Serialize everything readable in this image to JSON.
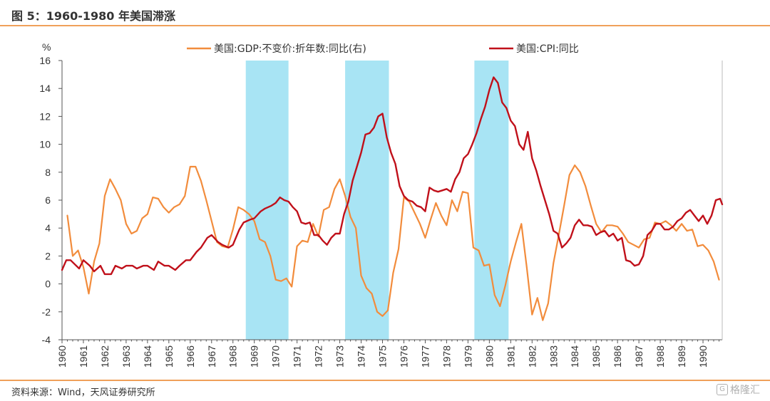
{
  "figure": {
    "title": "图 5：1960-1980 年美国滞涨",
    "source": "资料来源：Wind，天风证券研究所",
    "watermark": "格隆汇"
  },
  "colors": {
    "gdp": "#f28c3c",
    "cpi": "#c0101a",
    "shade": "#a8e4f4",
    "axis": "#555555",
    "rule": "#f0a05a"
  },
  "chart_data": {
    "type": "line",
    "ylabel": "%",
    "ylim": [
      -4,
      16
    ],
    "yticks": [
      -4,
      -2,
      0,
      2,
      4,
      6,
      8,
      10,
      12,
      14,
      16
    ],
    "xlim": [
      1960,
      1990.9
    ],
    "xticks": [
      "1960",
      "1961",
      "1962",
      "1963",
      "1964",
      "1965",
      "1966",
      "1967",
      "1968",
      "1969",
      "1970",
      "1971",
      "1972",
      "1973",
      "1974",
      "1975",
      "1976",
      "1977",
      "1978",
      "1979",
      "1980",
      "1981",
      "1982",
      "1983",
      "1984",
      "1985",
      "1986",
      "1987",
      "1988",
      "1989",
      "1990"
    ],
    "grid": false,
    "legend_position": "top",
    "shaded_periods": [
      [
        1968.6,
        1970.6
      ],
      [
        1973.25,
        1975.3
      ],
      [
        1979.3,
        1980.9
      ]
    ],
    "series": [
      {
        "name": "美国:GDP:不变价:折年数:同比(右)",
        "color_key": "gdp",
        "points": [
          [
            1960.25,
            4.9
          ],
          [
            1960.5,
            2.0
          ],
          [
            1960.75,
            2.4
          ],
          [
            1961.0,
            1.2
          ],
          [
            1961.25,
            -0.7
          ],
          [
            1961.5,
            1.6
          ],
          [
            1961.75,
            2.9
          ],
          [
            1962.0,
            6.3
          ],
          [
            1962.25,
            7.5
          ],
          [
            1962.5,
            6.8
          ],
          [
            1962.75,
            6.0
          ],
          [
            1963.0,
            4.3
          ],
          [
            1963.25,
            3.6
          ],
          [
            1963.5,
            3.8
          ],
          [
            1963.75,
            4.7
          ],
          [
            1964.0,
            5.0
          ],
          [
            1964.25,
            6.2
          ],
          [
            1964.5,
            6.1
          ],
          [
            1964.75,
            5.5
          ],
          [
            1965.0,
            5.1
          ],
          [
            1965.25,
            5.5
          ],
          [
            1965.5,
            5.7
          ],
          [
            1965.75,
            6.3
          ],
          [
            1966.0,
            8.4
          ],
          [
            1966.25,
            8.4
          ],
          [
            1966.5,
            7.4
          ],
          [
            1966.75,
            6.0
          ],
          [
            1967.0,
            4.5
          ],
          [
            1967.25,
            3.0
          ],
          [
            1967.5,
            2.7
          ],
          [
            1967.75,
            2.6
          ],
          [
            1968.0,
            3.9
          ],
          [
            1968.25,
            5.5
          ],
          [
            1968.5,
            5.3
          ],
          [
            1968.75,
            5.0
          ],
          [
            1969.0,
            4.5
          ],
          [
            1969.25,
            3.2
          ],
          [
            1969.5,
            3.0
          ],
          [
            1969.75,
            2.0
          ],
          [
            1970.0,
            0.3
          ],
          [
            1970.25,
            0.2
          ],
          [
            1970.5,
            0.4
          ],
          [
            1970.75,
            -0.2
          ],
          [
            1971.0,
            2.7
          ],
          [
            1971.25,
            3.1
          ],
          [
            1971.5,
            3.0
          ],
          [
            1971.75,
            4.3
          ],
          [
            1972.0,
            3.4
          ],
          [
            1972.25,
            5.3
          ],
          [
            1972.5,
            5.5
          ],
          [
            1972.75,
            6.8
          ],
          [
            1973.0,
            7.5
          ],
          [
            1973.25,
            6.3
          ],
          [
            1973.5,
            4.8
          ],
          [
            1973.75,
            4.0
          ],
          [
            1974.0,
            0.6
          ],
          [
            1974.25,
            -0.3
          ],
          [
            1974.5,
            -0.7
          ],
          [
            1974.75,
            -2.0
          ],
          [
            1975.0,
            -2.3
          ],
          [
            1975.25,
            -1.9
          ],
          [
            1975.5,
            0.8
          ],
          [
            1975.75,
            2.5
          ],
          [
            1976.0,
            6.2
          ],
          [
            1976.25,
            5.9
          ],
          [
            1976.5,
            5.1
          ],
          [
            1976.75,
            4.3
          ],
          [
            1977.0,
            3.3
          ],
          [
            1977.25,
            4.6
          ],
          [
            1977.5,
            5.8
          ],
          [
            1977.75,
            4.9
          ],
          [
            1978.0,
            4.2
          ],
          [
            1978.25,
            6.0
          ],
          [
            1978.5,
            5.2
          ],
          [
            1978.75,
            6.6
          ],
          [
            1979.0,
            6.5
          ],
          [
            1979.25,
            2.6
          ],
          [
            1979.5,
            2.4
          ],
          [
            1979.75,
            1.3
          ],
          [
            1980.0,
            1.4
          ],
          [
            1980.25,
            -0.8
          ],
          [
            1980.5,
            -1.6
          ],
          [
            1980.75,
            -0.1
          ],
          [
            1981.0,
            1.6
          ],
          [
            1981.25,
            3.0
          ],
          [
            1981.5,
            4.3
          ],
          [
            1981.75,
            1.2
          ],
          [
            1982.0,
            -2.2
          ],
          [
            1982.25,
            -1.0
          ],
          [
            1982.5,
            -2.6
          ],
          [
            1982.75,
            -1.4
          ],
          [
            1983.0,
            1.5
          ],
          [
            1983.25,
            3.5
          ],
          [
            1983.5,
            5.6
          ],
          [
            1983.75,
            7.8
          ],
          [
            1984.0,
            8.5
          ],
          [
            1984.25,
            8.0
          ],
          [
            1984.5,
            7.0
          ],
          [
            1984.75,
            5.6
          ],
          [
            1985.0,
            4.3
          ],
          [
            1985.25,
            3.7
          ],
          [
            1985.5,
            4.2
          ],
          [
            1985.75,
            4.2
          ],
          [
            1986.0,
            4.1
          ],
          [
            1986.25,
            3.6
          ],
          [
            1986.5,
            3.0
          ],
          [
            1986.75,
            2.8
          ],
          [
            1987.0,
            2.6
          ],
          [
            1987.25,
            3.2
          ],
          [
            1987.5,
            3.3
          ],
          [
            1987.75,
            4.4
          ],
          [
            1988.0,
            4.3
          ],
          [
            1988.25,
            4.5
          ],
          [
            1988.5,
            4.2
          ],
          [
            1988.75,
            3.8
          ],
          [
            1989.0,
            4.3
          ],
          [
            1989.25,
            3.8
          ],
          [
            1989.5,
            3.9
          ],
          [
            1989.75,
            2.7
          ],
          [
            1990.0,
            2.8
          ],
          [
            1990.25,
            2.4
          ],
          [
            1990.5,
            1.6
          ],
          [
            1990.75,
            0.3
          ]
        ]
      },
      {
        "name": "美国:CPI:同比",
        "color_key": "cpi",
        "points": [
          [
            1960.0,
            1.0
          ],
          [
            1960.2,
            1.7
          ],
          [
            1960.4,
            1.7
          ],
          [
            1960.6,
            1.4
          ],
          [
            1960.8,
            1.1
          ],
          [
            1961.0,
            1.7
          ],
          [
            1961.3,
            1.3
          ],
          [
            1961.5,
            0.9
          ],
          [
            1961.8,
            1.3
          ],
          [
            1962.0,
            0.7
          ],
          [
            1962.3,
            0.7
          ],
          [
            1962.5,
            1.3
          ],
          [
            1962.8,
            1.1
          ],
          [
            1963.0,
            1.3
          ],
          [
            1963.3,
            1.3
          ],
          [
            1963.5,
            1.1
          ],
          [
            1963.8,
            1.3
          ],
          [
            1964.0,
            1.3
          ],
          [
            1964.3,
            1.0
          ],
          [
            1964.5,
            1.6
          ],
          [
            1964.8,
            1.3
          ],
          [
            1965.0,
            1.3
          ],
          [
            1965.3,
            1.0
          ],
          [
            1965.5,
            1.3
          ],
          [
            1965.8,
            1.7
          ],
          [
            1966.0,
            1.7
          ],
          [
            1966.3,
            2.3
          ],
          [
            1966.5,
            2.6
          ],
          [
            1966.8,
            3.3
          ],
          [
            1967.0,
            3.5
          ],
          [
            1967.3,
            3.0
          ],
          [
            1967.5,
            2.8
          ],
          [
            1967.8,
            2.6
          ],
          [
            1968.0,
            2.8
          ],
          [
            1968.3,
            3.9
          ],
          [
            1968.5,
            4.4
          ],
          [
            1968.8,
            4.6
          ],
          [
            1969.0,
            4.7
          ],
          [
            1969.3,
            5.2
          ],
          [
            1969.5,
            5.4
          ],
          [
            1969.8,
            5.6
          ],
          [
            1970.0,
            5.8
          ],
          [
            1970.2,
            6.2
          ],
          [
            1970.4,
            6.0
          ],
          [
            1970.6,
            5.9
          ],
          [
            1970.8,
            5.5
          ],
          [
            1971.0,
            5.2
          ],
          [
            1971.2,
            4.4
          ],
          [
            1971.4,
            4.3
          ],
          [
            1971.6,
            4.4
          ],
          [
            1971.8,
            3.5
          ],
          [
            1972.0,
            3.5
          ],
          [
            1972.2,
            3.1
          ],
          [
            1972.4,
            2.8
          ],
          [
            1972.6,
            3.3
          ],
          [
            1972.8,
            3.6
          ],
          [
            1973.0,
            3.6
          ],
          [
            1973.2,
            5.0
          ],
          [
            1973.4,
            5.9
          ],
          [
            1973.6,
            7.4
          ],
          [
            1973.8,
            8.4
          ],
          [
            1974.0,
            9.4
          ],
          [
            1974.2,
            10.7
          ],
          [
            1974.4,
            10.8
          ],
          [
            1974.6,
            11.2
          ],
          [
            1974.8,
            12.0
          ],
          [
            1975.0,
            12.2
          ],
          [
            1975.2,
            10.5
          ],
          [
            1975.4,
            9.4
          ],
          [
            1975.6,
            8.6
          ],
          [
            1975.8,
            7.0
          ],
          [
            1976.0,
            6.3
          ],
          [
            1976.2,
            6.0
          ],
          [
            1976.4,
            5.9
          ],
          [
            1976.6,
            5.6
          ],
          [
            1976.8,
            5.5
          ],
          [
            1977.0,
            5.2
          ],
          [
            1977.2,
            6.9
          ],
          [
            1977.4,
            6.7
          ],
          [
            1977.6,
            6.6
          ],
          [
            1977.8,
            6.7
          ],
          [
            1978.0,
            6.8
          ],
          [
            1978.2,
            6.6
          ],
          [
            1978.4,
            7.5
          ],
          [
            1978.6,
            8.0
          ],
          [
            1978.8,
            9.0
          ],
          [
            1979.0,
            9.3
          ],
          [
            1979.2,
            10.0
          ],
          [
            1979.4,
            10.8
          ],
          [
            1979.6,
            11.8
          ],
          [
            1979.8,
            12.7
          ],
          [
            1980.0,
            13.9
          ],
          [
            1980.2,
            14.8
          ],
          [
            1980.4,
            14.4
          ],
          [
            1980.6,
            13.0
          ],
          [
            1980.8,
            12.6
          ],
          [
            1981.0,
            11.7
          ],
          [
            1981.2,
            11.3
          ],
          [
            1981.4,
            10.0
          ],
          [
            1981.6,
            9.6
          ],
          [
            1981.8,
            10.9
          ],
          [
            1982.0,
            9.0
          ],
          [
            1982.2,
            8.1
          ],
          [
            1982.4,
            7.0
          ],
          [
            1982.6,
            6.0
          ],
          [
            1982.8,
            5.0
          ],
          [
            1983.0,
            3.8
          ],
          [
            1983.2,
            3.6
          ],
          [
            1983.4,
            2.6
          ],
          [
            1983.6,
            2.9
          ],
          [
            1983.8,
            3.3
          ],
          [
            1984.0,
            4.2
          ],
          [
            1984.2,
            4.6
          ],
          [
            1984.4,
            4.2
          ],
          [
            1984.6,
            4.2
          ],
          [
            1984.8,
            4.1
          ],
          [
            1985.0,
            3.5
          ],
          [
            1985.2,
            3.7
          ],
          [
            1985.4,
            3.8
          ],
          [
            1985.6,
            3.4
          ],
          [
            1985.8,
            3.6
          ],
          [
            1986.0,
            3.1
          ],
          [
            1986.2,
            3.3
          ],
          [
            1986.4,
            1.7
          ],
          [
            1986.6,
            1.6
          ],
          [
            1986.8,
            1.3
          ],
          [
            1987.0,
            1.4
          ],
          [
            1987.2,
            2.0
          ],
          [
            1987.4,
            3.5
          ],
          [
            1987.6,
            3.8
          ],
          [
            1987.8,
            4.3
          ],
          [
            1988.0,
            4.3
          ],
          [
            1988.2,
            3.9
          ],
          [
            1988.4,
            3.9
          ],
          [
            1988.6,
            4.1
          ],
          [
            1988.8,
            4.5
          ],
          [
            1989.0,
            4.7
          ],
          [
            1989.2,
            5.1
          ],
          [
            1989.4,
            5.3
          ],
          [
            1989.6,
            4.9
          ],
          [
            1989.8,
            4.5
          ],
          [
            1990.0,
            4.9
          ],
          [
            1990.2,
            4.3
          ],
          [
            1990.4,
            4.9
          ],
          [
            1990.6,
            6.0
          ],
          [
            1990.8,
            6.1
          ],
          [
            1990.9,
            5.7
          ]
        ]
      }
    ]
  }
}
